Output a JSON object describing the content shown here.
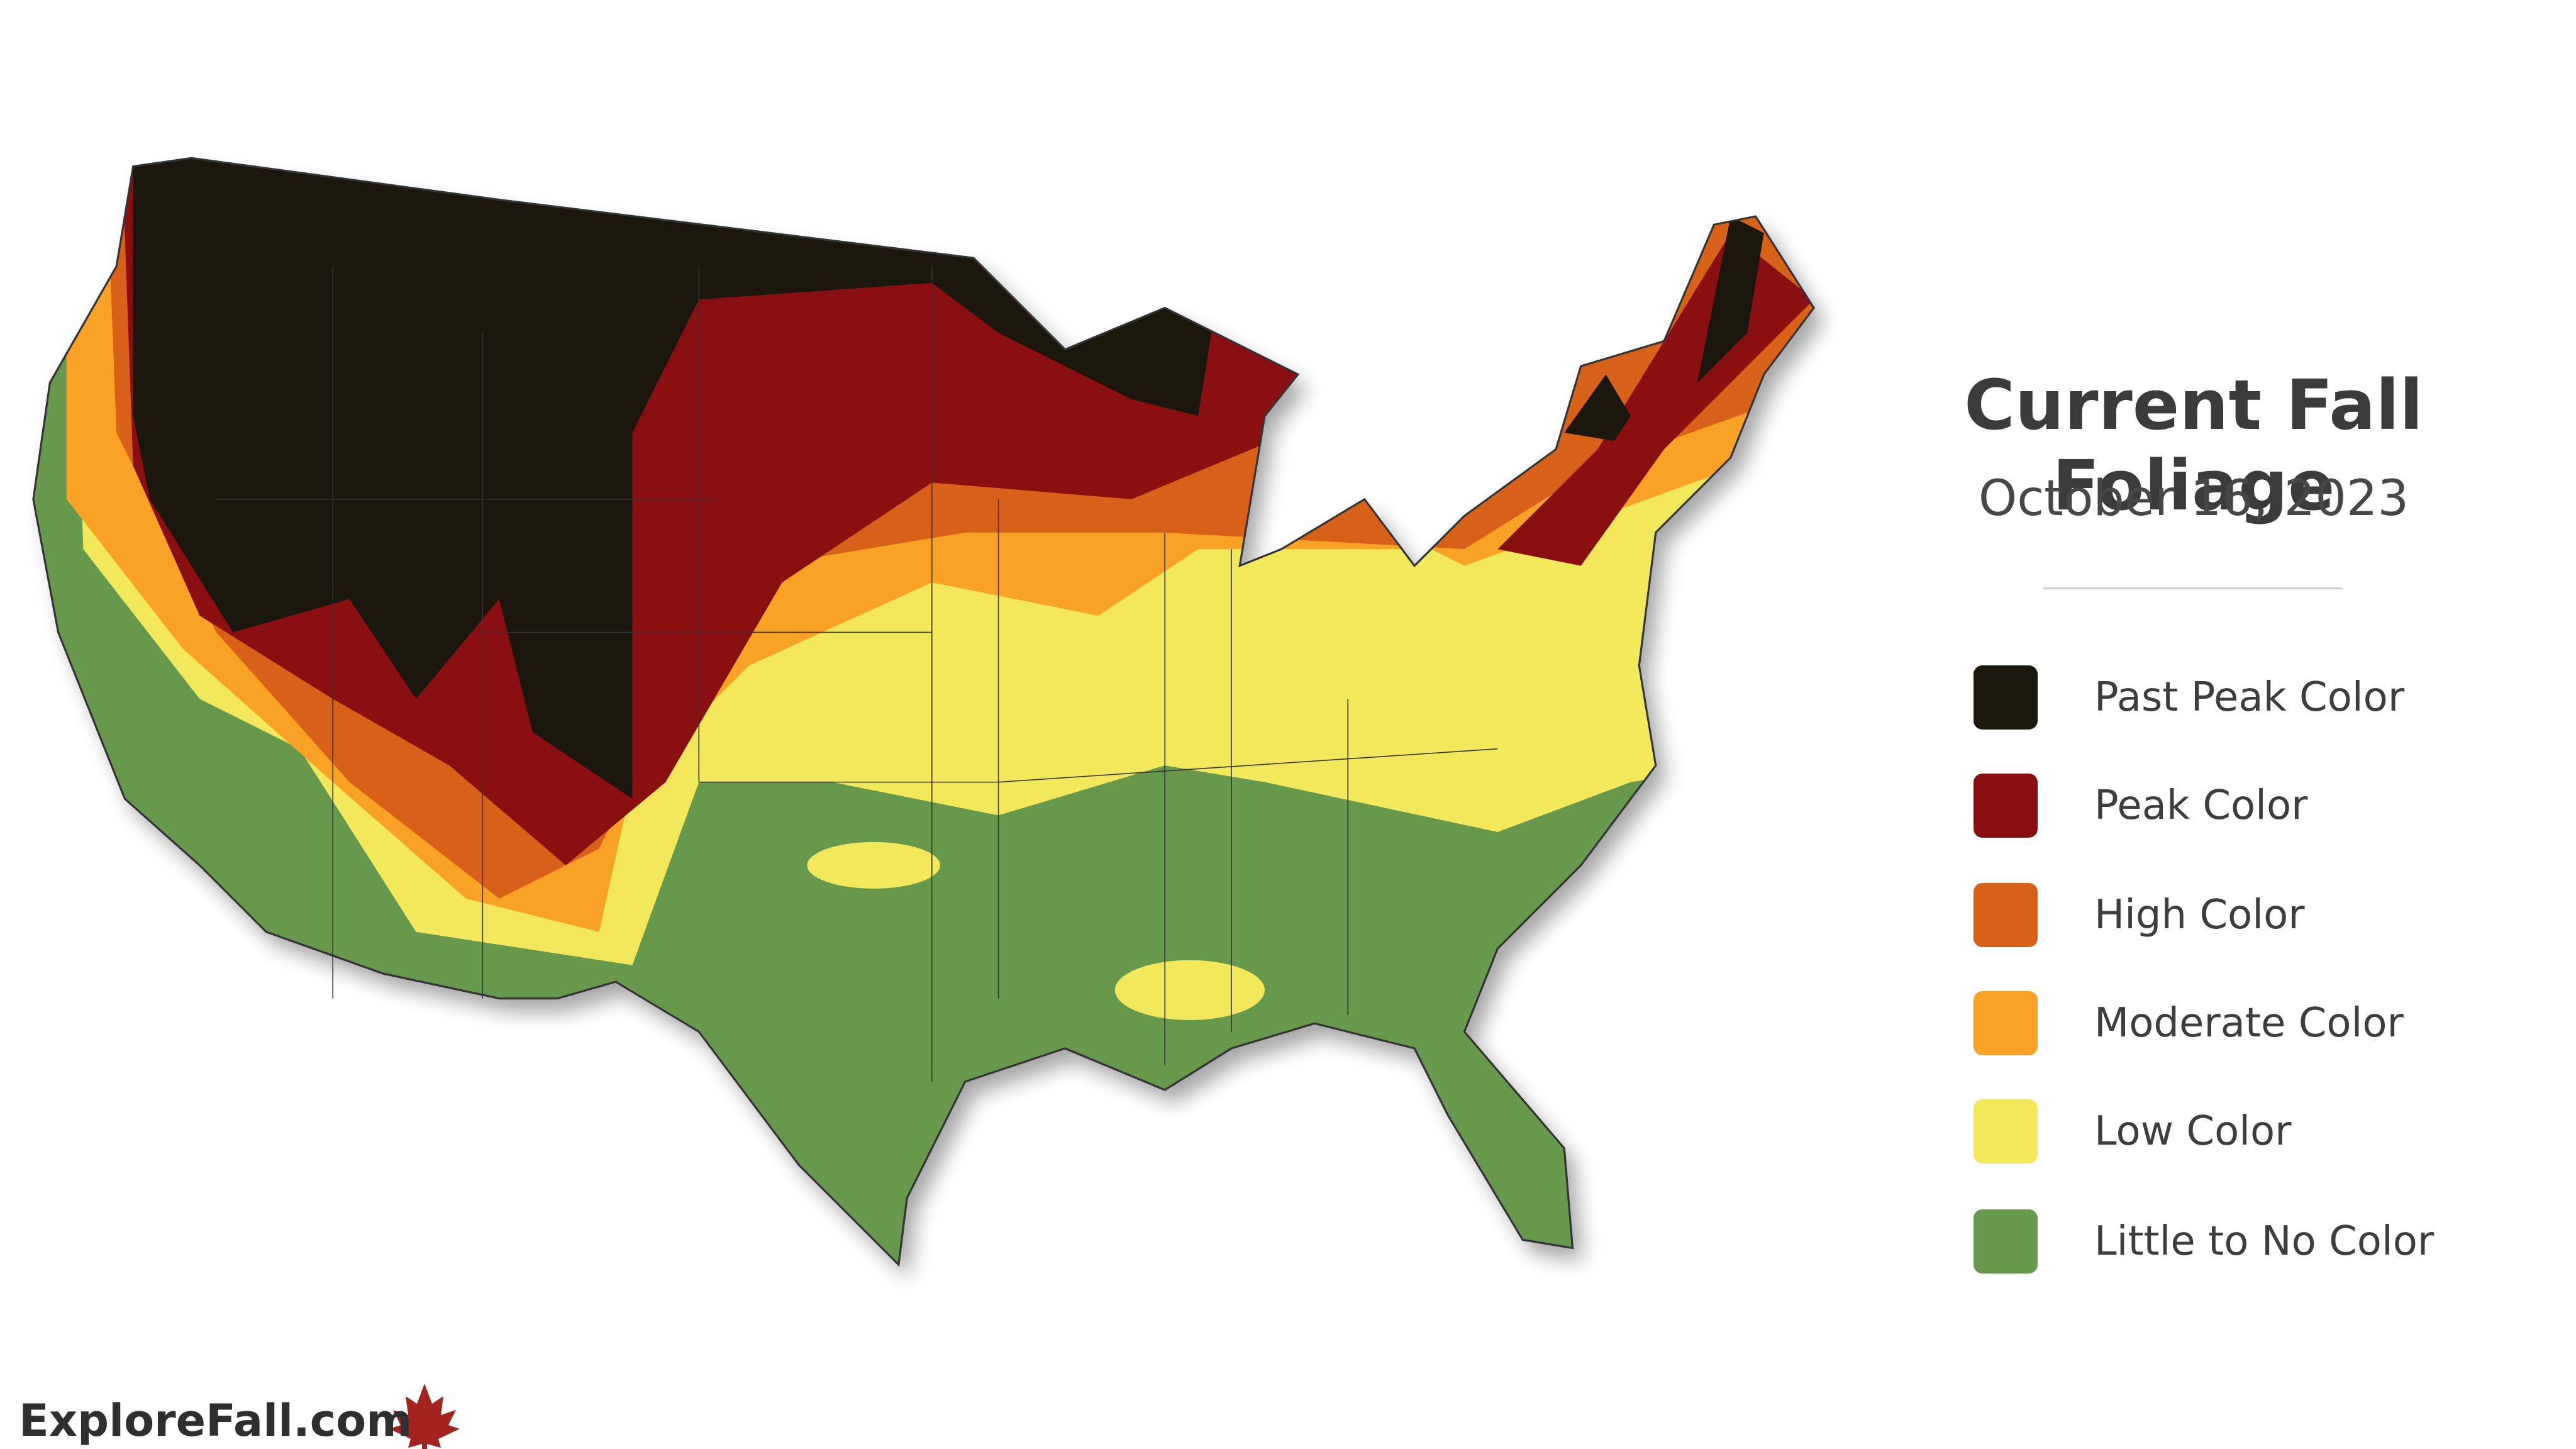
{
  "title": "Current Fall Foliage",
  "date": "October 16, 2023",
  "legend": {
    "items": [
      {
        "label": "Past Peak Color",
        "color": "#1b170c"
      },
      {
        "label": "Peak Color",
        "color": "#8a0f10"
      },
      {
        "label": "High Color",
        "color": "#d8611a"
      },
      {
        "label": "Moderate Color",
        "color": "#f9a226"
      },
      {
        "label": "Low Color",
        "color": "#f3e85c"
      },
      {
        "label": "Little to No Color",
        "color": "#66994b"
      }
    ]
  },
  "brand": "ExploreFall.com"
}
